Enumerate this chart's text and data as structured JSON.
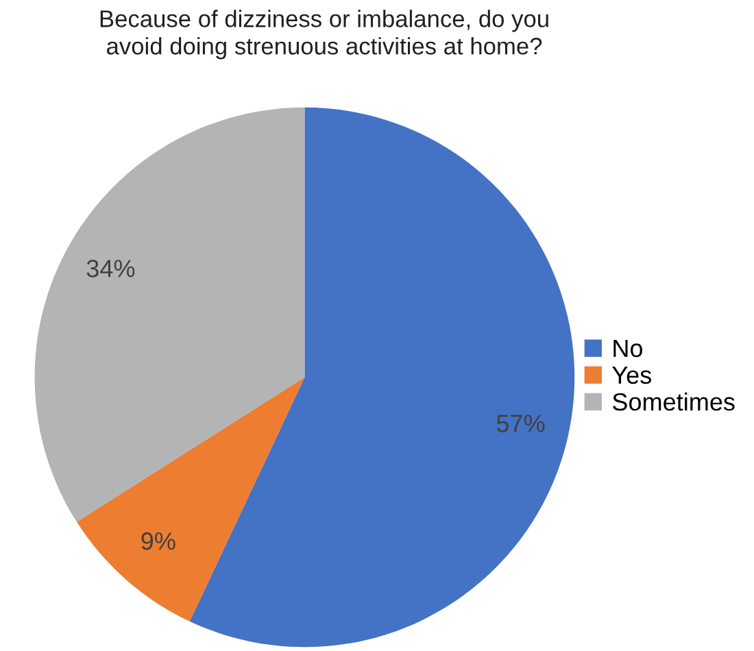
{
  "chart_data": {
    "type": "pie",
    "title": "Because of dizziness or imbalance, do you\navoid doing strenuous activities at home?",
    "categories": [
      "No",
      "Yes",
      "Sometimes"
    ],
    "values": [
      57,
      9,
      34
    ],
    "colors": [
      "#4472c4",
      "#ed7d31",
      "#b3b4b6"
    ],
    "value_labels": [
      "57%",
      "9%",
      "34%"
    ],
    "legend": "right"
  }
}
